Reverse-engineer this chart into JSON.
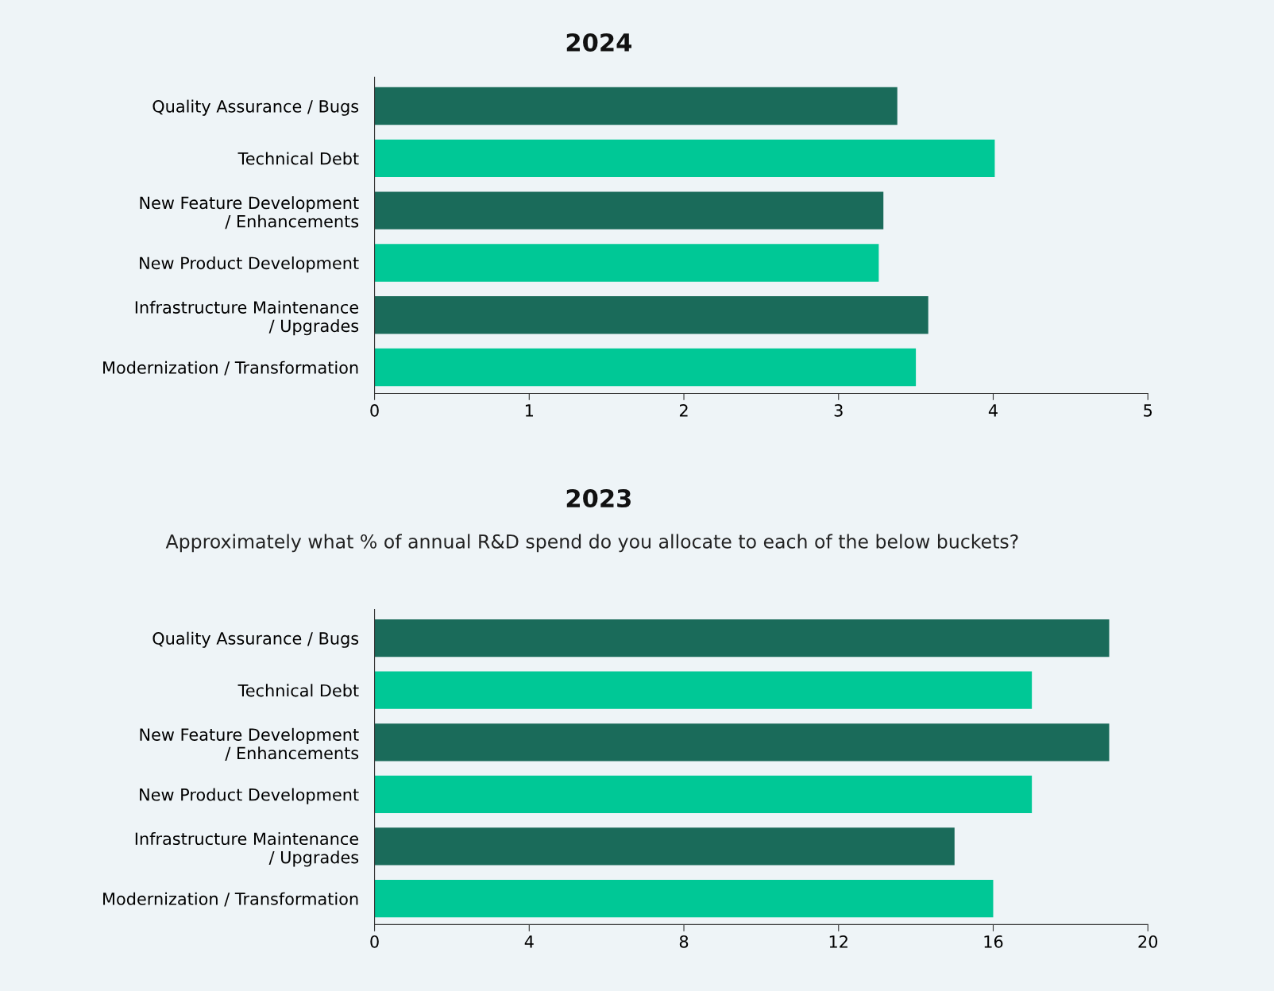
{
  "chart_data": [
    {
      "type": "bar",
      "orientation": "horizontal",
      "title": "2024",
      "categories": [
        "Quality Assurance / Bugs",
        "Technical Debt",
        "New Feature Development\n/ Enhancements",
        "New Product Development",
        "Infrastructure Maintenance\n/ Upgrades",
        "Modernization / Transformation"
      ],
      "values": [
        3.38,
        4.01,
        3.29,
        3.26,
        3.58,
        3.5
      ],
      "colors": [
        "#1a6b5a",
        "#00c896",
        "#1a6b5a",
        "#00c896",
        "#1a6b5a",
        "#00c896"
      ],
      "xlim": [
        0,
        5
      ],
      "xticks": [
        0,
        1,
        2,
        3,
        4,
        5
      ],
      "grid": false,
      "legend": false
    },
    {
      "type": "bar",
      "orientation": "horizontal",
      "title": "2023",
      "subtitle": "Approximately what % of annual R&D spend do you allocate to each of the below buckets?",
      "categories": [
        "Quality Assurance / Bugs",
        "Technical Debt",
        "New Feature Development\n/ Enhancements",
        "New Product Development",
        "Infrastructure Maintenance\n/ Upgrades",
        "Modernization / Transformation"
      ],
      "values": [
        19,
        17,
        19,
        17,
        15,
        16
      ],
      "colors": [
        "#1a6b5a",
        "#00c896",
        "#1a6b5a",
        "#00c896",
        "#1a6b5a",
        "#00c896"
      ],
      "xlim": [
        0,
        20
      ],
      "xticks": [
        0,
        4,
        8,
        12,
        16,
        20
      ],
      "grid": false,
      "legend": false
    }
  ]
}
